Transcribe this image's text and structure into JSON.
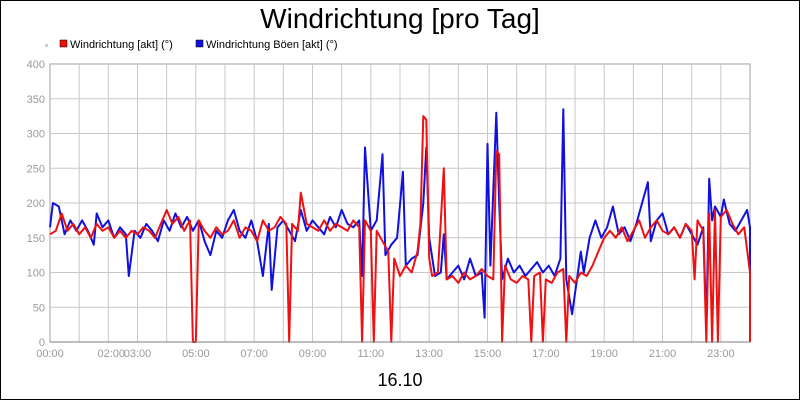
{
  "chart_data": {
    "type": "line",
    "title": "Windrichtung [pro Tag]",
    "xlabel": "16.10",
    "ylabel": "",
    "ylim": [
      0,
      400
    ],
    "yticks": [
      0,
      50,
      100,
      150,
      200,
      250,
      300,
      350,
      400
    ],
    "xlim_hours": [
      0,
      24
    ],
    "xticks": [
      {
        "label": "00:00",
        "h": 0
      },
      {
        "label": "02:00",
        "h": 2.1
      },
      {
        "label": "03:00",
        "h": 3
      },
      {
        "label": "05:00",
        "h": 5
      },
      {
        "label": "07:00",
        "h": 7
      },
      {
        "label": "09:00",
        "h": 9
      },
      {
        "label": "11:00",
        "h": 11
      },
      {
        "label": "13:00",
        "h": 13
      },
      {
        "label": "15:00",
        "h": 15
      },
      {
        "label": "17:00",
        "h": 17
      },
      {
        "label": "19:00",
        "h": 19
      },
      {
        "label": "21:00",
        "h": 21
      },
      {
        "label": "23:00",
        "h": 23
      }
    ],
    "grid": true,
    "legend_position": "top-left",
    "series": [
      {
        "name": "Windrichtung [akt] (°)",
        "color": "#ee1111",
        "points": [
          [
            0,
            155
          ],
          [
            0.2,
            160
          ],
          [
            0.4,
            185
          ],
          [
            0.6,
            160
          ],
          [
            0.8,
            170
          ],
          [
            1.0,
            155
          ],
          [
            1.2,
            165
          ],
          [
            1.4,
            150
          ],
          [
            1.6,
            170
          ],
          [
            1.8,
            160
          ],
          [
            2.0,
            165
          ],
          [
            2.2,
            150
          ],
          [
            2.4,
            160
          ],
          [
            2.6,
            150
          ],
          [
            2.8,
            160
          ],
          [
            3.0,
            155
          ],
          [
            3.2,
            165
          ],
          [
            3.4,
            160
          ],
          [
            3.6,
            150
          ],
          [
            3.8,
            170
          ],
          [
            4.0,
            190
          ],
          [
            4.2,
            170
          ],
          [
            4.4,
            180
          ],
          [
            4.6,
            160
          ],
          [
            4.8,
            175
          ],
          [
            4.9,
            0
          ],
          [
            5.0,
            0
          ],
          [
            5.1,
            175
          ],
          [
            5.3,
            160
          ],
          [
            5.5,
            150
          ],
          [
            5.7,
            165
          ],
          [
            5.9,
            155
          ],
          [
            6.1,
            160
          ],
          [
            6.3,
            175
          ],
          [
            6.5,
            150
          ],
          [
            6.7,
            165
          ],
          [
            6.9,
            160
          ],
          [
            7.1,
            145
          ],
          [
            7.3,
            175
          ],
          [
            7.5,
            160
          ],
          [
            7.7,
            165
          ],
          [
            7.9,
            180
          ],
          [
            8.1,
            170
          ],
          [
            8.2,
            0
          ],
          [
            8.3,
            170
          ],
          [
            8.5,
            160
          ],
          [
            8.6,
            215
          ],
          [
            8.8,
            170
          ],
          [
            9.0,
            165
          ],
          [
            9.2,
            160
          ],
          [
            9.4,
            175
          ],
          [
            9.6,
            160
          ],
          [
            9.8,
            170
          ],
          [
            10.0,
            165
          ],
          [
            10.2,
            160
          ],
          [
            10.4,
            175
          ],
          [
            10.6,
            165
          ],
          [
            10.7,
            0
          ],
          [
            10.8,
            175
          ],
          [
            11.0,
            160
          ],
          [
            11.1,
            0
          ],
          [
            11.2,
            160
          ],
          [
            11.4,
            145
          ],
          [
            11.6,
            130
          ],
          [
            11.7,
            0
          ],
          [
            11.8,
            120
          ],
          [
            12.0,
            95
          ],
          [
            12.2,
            110
          ],
          [
            12.4,
            100
          ],
          [
            12.6,
            130
          ],
          [
            12.7,
            170
          ],
          [
            12.8,
            325
          ],
          [
            12.9,
            320
          ],
          [
            13.0,
            120
          ],
          [
            13.1,
            95
          ],
          [
            13.3,
            100
          ],
          [
            13.5,
            250
          ],
          [
            13.6,
            90
          ],
          [
            13.8,
            95
          ],
          [
            14.0,
            85
          ],
          [
            14.2,
            100
          ],
          [
            14.4,
            90
          ],
          [
            14.6,
            95
          ],
          [
            14.8,
            105
          ],
          [
            15.0,
            95
          ],
          [
            15.2,
            90
          ],
          [
            15.3,
            275
          ],
          [
            15.4,
            270
          ],
          [
            15.5,
            0
          ],
          [
            15.6,
            110
          ],
          [
            15.8,
            90
          ],
          [
            16.0,
            85
          ],
          [
            16.2,
            95
          ],
          [
            16.4,
            90
          ],
          [
            16.5,
            0
          ],
          [
            16.6,
            95
          ],
          [
            16.8,
            100
          ],
          [
            16.9,
            0
          ],
          [
            17.0,
            90
          ],
          [
            17.2,
            85
          ],
          [
            17.4,
            100
          ],
          [
            17.6,
            105
          ],
          [
            17.7,
            0
          ],
          [
            17.8,
            95
          ],
          [
            18.0,
            85
          ],
          [
            18.2,
            100
          ],
          [
            18.4,
            95
          ],
          [
            18.6,
            110
          ],
          [
            18.8,
            130
          ],
          [
            19.0,
            150
          ],
          [
            19.2,
            160
          ],
          [
            19.4,
            150
          ],
          [
            19.6,
            165
          ],
          [
            19.8,
            145
          ],
          [
            20.0,
            160
          ],
          [
            20.2,
            175
          ],
          [
            20.4,
            150
          ],
          [
            20.6,
            165
          ],
          [
            20.8,
            175
          ],
          [
            21.0,
            160
          ],
          [
            21.2,
            155
          ],
          [
            21.4,
            165
          ],
          [
            21.6,
            150
          ],
          [
            21.8,
            170
          ],
          [
            22.0,
            160
          ],
          [
            22.1,
            90
          ],
          [
            22.2,
            175
          ],
          [
            22.4,
            160
          ],
          [
            22.5,
            0
          ],
          [
            22.6,
            185
          ],
          [
            22.7,
            0
          ],
          [
            22.8,
            190
          ],
          [
            22.9,
            0
          ],
          [
            23.0,
            180
          ],
          [
            23.2,
            190
          ],
          [
            23.4,
            170
          ],
          [
            23.6,
            155
          ],
          [
            23.8,
            165
          ],
          [
            24.0,
            100
          ],
          [
            24.0,
            0
          ]
        ]
      },
      {
        "name": "Windrichtung Böen [akt] (°)",
        "color": "#1111dd",
        "points": [
          [
            0,
            165
          ],
          [
            0.1,
            200
          ],
          [
            0.3,
            195
          ],
          [
            0.5,
            155
          ],
          [
            0.7,
            175
          ],
          [
            0.9,
            160
          ],
          [
            1.1,
            175
          ],
          [
            1.3,
            160
          ],
          [
            1.5,
            140
          ],
          [
            1.6,
            185
          ],
          [
            1.8,
            165
          ],
          [
            2.0,
            175
          ],
          [
            2.2,
            150
          ],
          [
            2.4,
            165
          ],
          [
            2.6,
            155
          ],
          [
            2.7,
            95
          ],
          [
            2.9,
            160
          ],
          [
            3.1,
            150
          ],
          [
            3.3,
            170
          ],
          [
            3.5,
            160
          ],
          [
            3.7,
            145
          ],
          [
            3.9,
            175
          ],
          [
            4.1,
            160
          ],
          [
            4.3,
            185
          ],
          [
            4.5,
            165
          ],
          [
            4.7,
            180
          ],
          [
            4.9,
            160
          ],
          [
            5.1,
            175
          ],
          [
            5.3,
            145
          ],
          [
            5.5,
            125
          ],
          [
            5.7,
            160
          ],
          [
            5.9,
            150
          ],
          [
            6.1,
            175
          ],
          [
            6.3,
            190
          ],
          [
            6.5,
            160
          ],
          [
            6.7,
            150
          ],
          [
            6.9,
            175
          ],
          [
            7.1,
            145
          ],
          [
            7.3,
            95
          ],
          [
            7.5,
            170
          ],
          [
            7.6,
            75
          ],
          [
            7.8,
            165
          ],
          [
            8.0,
            175
          ],
          [
            8.2,
            160
          ],
          [
            8.4,
            145
          ],
          [
            8.6,
            190
          ],
          [
            8.8,
            160
          ],
          [
            9.0,
            175
          ],
          [
            9.2,
            165
          ],
          [
            9.4,
            155
          ],
          [
            9.6,
            180
          ],
          [
            9.8,
            165
          ],
          [
            10.0,
            190
          ],
          [
            10.2,
            170
          ],
          [
            10.4,
            165
          ],
          [
            10.6,
            175
          ],
          [
            10.7,
            95
          ],
          [
            10.8,
            280
          ],
          [
            11.0,
            160
          ],
          [
            11.2,
            175
          ],
          [
            11.4,
            270
          ],
          [
            11.5,
            125
          ],
          [
            11.7,
            140
          ],
          [
            11.9,
            150
          ],
          [
            12.1,
            245
          ],
          [
            12.2,
            110
          ],
          [
            12.4,
            120
          ],
          [
            12.6,
            125
          ],
          [
            12.8,
            200
          ],
          [
            12.9,
            280
          ],
          [
            13.0,
            150
          ],
          [
            13.2,
            95
          ],
          [
            13.4,
            100
          ],
          [
            13.5,
            155
          ],
          [
            13.6,
            90
          ],
          [
            13.8,
            100
          ],
          [
            14.0,
            110
          ],
          [
            14.2,
            90
          ],
          [
            14.4,
            120
          ],
          [
            14.6,
            95
          ],
          [
            14.8,
            100
          ],
          [
            14.9,
            35
          ],
          [
            15.0,
            285
          ],
          [
            15.1,
            110
          ],
          [
            15.3,
            330
          ],
          [
            15.4,
            200
          ],
          [
            15.5,
            90
          ],
          [
            15.7,
            120
          ],
          [
            15.9,
            100
          ],
          [
            16.1,
            110
          ],
          [
            16.3,
            95
          ],
          [
            16.5,
            105
          ],
          [
            16.7,
            115
          ],
          [
            16.9,
            100
          ],
          [
            17.1,
            110
          ],
          [
            17.3,
            95
          ],
          [
            17.5,
            120
          ],
          [
            17.6,
            335
          ],
          [
            17.7,
            90
          ],
          [
            17.9,
            40
          ],
          [
            18.0,
            70
          ],
          [
            18.2,
            130
          ],
          [
            18.3,
            100
          ],
          [
            18.5,
            150
          ],
          [
            18.7,
            175
          ],
          [
            18.9,
            150
          ],
          [
            19.1,
            165
          ],
          [
            19.3,
            195
          ],
          [
            19.5,
            155
          ],
          [
            19.7,
            165
          ],
          [
            19.9,
            145
          ],
          [
            20.1,
            170
          ],
          [
            20.3,
            200
          ],
          [
            20.5,
            230
          ],
          [
            20.6,
            145
          ],
          [
            20.8,
            175
          ],
          [
            21.0,
            185
          ],
          [
            21.2,
            155
          ],
          [
            21.4,
            165
          ],
          [
            21.6,
            150
          ],
          [
            21.8,
            170
          ],
          [
            22.0,
            155
          ],
          [
            22.2,
            140
          ],
          [
            22.4,
            165
          ],
          [
            22.5,
            20
          ],
          [
            22.6,
            235
          ],
          [
            22.7,
            175
          ],
          [
            22.8,
            195
          ],
          [
            23.0,
            180
          ],
          [
            23.1,
            205
          ],
          [
            23.3,
            170
          ],
          [
            23.5,
            160
          ],
          [
            23.7,
            175
          ],
          [
            23.9,
            190
          ],
          [
            24.0,
            165
          ],
          [
            24.0,
            0
          ]
        ]
      }
    ]
  }
}
